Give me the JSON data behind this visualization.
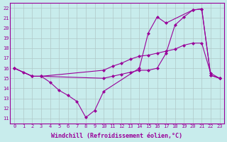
{
  "xlabel": "Windchill (Refroidissement éolien,°C)",
  "background_color": "#c8ecec",
  "line_color": "#990099",
  "grid_color": "#b0c8c8",
  "xlim": [
    -0.5,
    23.5
  ],
  "ylim": [
    10.5,
    22.5
  ],
  "xticks": [
    0,
    1,
    2,
    3,
    4,
    5,
    6,
    7,
    8,
    9,
    10,
    11,
    12,
    13,
    14,
    15,
    16,
    17,
    18,
    19,
    20,
    21,
    22,
    23
  ],
  "yticks": [
    11,
    12,
    13,
    14,
    15,
    16,
    17,
    18,
    19,
    20,
    21,
    22
  ],
  "line1_x": [
    0,
    1,
    2,
    3,
    4,
    5,
    6,
    7,
    8,
    9,
    10,
    14,
    15,
    16,
    17,
    20,
    21,
    22,
    23
  ],
  "line1_y": [
    16.0,
    15.6,
    15.2,
    15.2,
    14.6,
    13.8,
    13.3,
    12.7,
    11.1,
    11.8,
    13.7,
    16.0,
    19.5,
    21.1,
    20.5,
    21.8,
    21.9,
    15.3,
    15.0
  ],
  "line2_x": [
    0,
    2,
    3,
    10,
    11,
    12,
    13,
    14,
    15,
    16,
    17,
    18,
    19,
    20,
    21,
    22,
    23
  ],
  "line2_y": [
    16.0,
    15.2,
    15.2,
    15.8,
    16.2,
    16.5,
    16.9,
    17.2,
    17.3,
    17.5,
    17.7,
    17.9,
    18.3,
    18.5,
    18.5,
    15.5,
    15.0
  ],
  "line3_x": [
    0,
    2,
    3,
    10,
    11,
    12,
    13,
    14,
    15,
    16,
    17,
    18,
    19,
    20,
    21,
    22,
    23
  ],
  "line3_y": [
    16.0,
    15.2,
    15.2,
    15.0,
    15.2,
    15.4,
    15.6,
    15.8,
    15.8,
    16.0,
    17.5,
    20.3,
    21.1,
    21.8,
    21.9,
    15.3,
    15.0
  ],
  "marker": "D",
  "markersize": 2.0,
  "linewidth": 0.8,
  "tick_fontsize": 5.0,
  "label_fontsize": 6.0
}
